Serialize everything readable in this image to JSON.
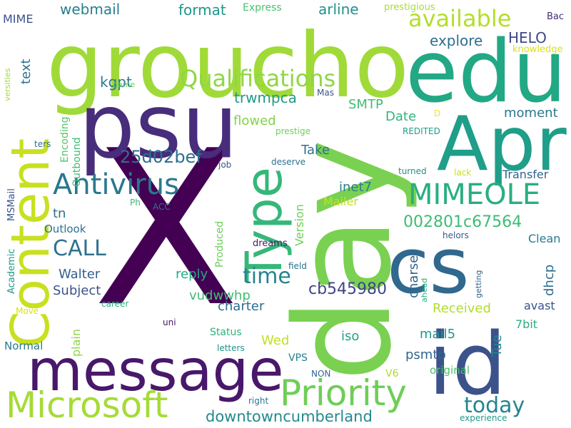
{
  "words": [
    {
      "text": "X",
      "color": "#440154"
    },
    {
      "text": "day",
      "color": "#7ad151"
    },
    {
      "text": "groucho",
      "color": "#a0da39"
    },
    {
      "text": "psu",
      "color": "#472d7b"
    },
    {
      "text": "edu",
      "color": "#22a884"
    },
    {
      "text": "id",
      "color": "#3b528b"
    },
    {
      "text": "cs",
      "color": "#31688e"
    },
    {
      "text": "Apr",
      "color": "#1f9e89"
    },
    {
      "text": "message",
      "color": "#48186a"
    },
    {
      "text": "Content",
      "color": "#c8e020"
    },
    {
      "text": "Type",
      "color": "#35b779"
    },
    {
      "text": "Priority",
      "color": "#6ece58"
    },
    {
      "text": "Microsoft",
      "color": "#a5db36"
    },
    {
      "text": "MIMEOLE",
      "color": "#29af7f"
    },
    {
      "text": "Antivirus",
      "color": "#2a788e"
    },
    {
      "text": "Qualifications",
      "color": "#8fd744"
    },
    {
      "text": "available",
      "color": "#b5de2b"
    },
    {
      "text": "today",
      "color": "#25858e"
    },
    {
      "text": "time",
      "color": "#25848e"
    },
    {
      "text": "CALL",
      "color": "#2c728e"
    },
    {
      "text": "002801c67564",
      "color": "#3dbc74"
    },
    {
      "text": "25d02bef",
      "color": "#2d708e"
    },
    {
      "text": "downtowncumberland",
      "color": "#23898e"
    },
    {
      "text": "cb545980",
      "color": "#414487"
    },
    {
      "text": "webmail",
      "color": "#277f8e"
    },
    {
      "text": "format",
      "color": "#1f968b"
    },
    {
      "text": "arline",
      "color": "#21918c"
    },
    {
      "text": "explore",
      "color": "#2e6e8e"
    },
    {
      "text": "HELO",
      "color": "#3f4788"
    },
    {
      "text": "kgpt",
      "color": "#297a8e"
    },
    {
      "text": "trwmpca",
      "color": "#1f9a8a"
    },
    {
      "text": "SMTP",
      "color": "#3fbc73"
    },
    {
      "text": "flowed",
      "color": "#84d44b"
    },
    {
      "text": "Date",
      "color": "#31b57b"
    },
    {
      "text": "moment",
      "color": "#2a788e"
    },
    {
      "text": "Take",
      "color": "#2c728e"
    },
    {
      "text": "inet7",
      "color": "#277f8e"
    },
    {
      "text": "Transfer",
      "color": "#32658e"
    },
    {
      "text": "Walter",
      "color": "#355f8d"
    },
    {
      "text": "Subject",
      "color": "#3b528b"
    },
    {
      "text": "reply",
      "color": "#23a983"
    },
    {
      "text": "vudwwhp",
      "color": "#40bd72"
    },
    {
      "text": "charter",
      "color": "#2e6d8e"
    },
    {
      "text": "Received",
      "color": "#b0dd2f"
    },
    {
      "text": "charset",
      "color": "#33638d"
    },
    {
      "text": "dhcp",
      "color": "#2f6c8e"
    },
    {
      "text": "avast",
      "color": "#3b528b"
    },
    {
      "text": "7bit",
      "color": "#28ae80"
    },
    {
      "text": "mail5",
      "color": "#1f988b"
    },
    {
      "text": "psmtp",
      "color": "#32658e"
    },
    {
      "text": "Tue",
      "color": "#25848e"
    },
    {
      "text": "iso",
      "color": "#20a386"
    },
    {
      "text": "Wed",
      "color": "#c2df23"
    },
    {
      "text": "MIME",
      "color": "#3b528b"
    },
    {
      "text": "text",
      "color": "#2d708e"
    },
    {
      "text": "Express",
      "color": "#4ac16d"
    },
    {
      "text": "prestigious",
      "color": "#a8db34"
    },
    {
      "text": "Bac",
      "color": "#472c7a"
    },
    {
      "text": "knowledge",
      "color": "#d8e219"
    },
    {
      "text": "tn",
      "color": "#2c728e"
    },
    {
      "text": "Outbound",
      "color": "#3dbc74"
    },
    {
      "text": "Encoding",
      "color": "#52c569"
    },
    {
      "text": "Version",
      "color": "#70cf57"
    },
    {
      "text": "Mailer",
      "color": "#c5e021"
    },
    {
      "text": "Produced",
      "color": "#6ccd5a"
    },
    {
      "text": "Outlook",
      "color": "#2d708e"
    },
    {
      "text": "Clean",
      "color": "#2a788e"
    },
    {
      "text": "plain",
      "color": "#8bd646"
    },
    {
      "text": "Status",
      "color": "#2db27d"
    },
    {
      "text": "Normal",
      "color": "#2a788e"
    },
    {
      "text": "original",
      "color": "#4ac16d"
    },
    {
      "text": "VPS",
      "color": "#277f8e"
    },
    {
      "text": "V6",
      "color": "#addc30"
    },
    {
      "text": "MSMail",
      "color": "#3b528b"
    },
    {
      "text": "Academic",
      "color": "#1f988b"
    },
    {
      "text": "name",
      "color": "#6ccd5a"
    },
    {
      "text": "versities",
      "color": "#a2da37"
    },
    {
      "text": "Mas",
      "color": "#39558c"
    },
    {
      "text": "prestige",
      "color": "#6ece58"
    },
    {
      "text": "REDITED",
      "color": "#1f9e89"
    },
    {
      "text": "D",
      "color": "#efe51c"
    },
    {
      "text": "ters",
      "color": "#2e6e8e"
    },
    {
      "text": "job",
      "color": "#39568c"
    },
    {
      "text": "deserve",
      "color": "#2d708e"
    },
    {
      "text": "turned",
      "color": "#20928c"
    },
    {
      "text": "lack",
      "color": "#c8e020"
    },
    {
      "text": "Ph",
      "color": "#37b878"
    },
    {
      "text": "ACC",
      "color": "#2c728e"
    },
    {
      "text": "helors",
      "color": "#38588c"
    },
    {
      "text": "field",
      "color": "#2c728e"
    },
    {
      "text": "dreams",
      "color": "#481769"
    },
    {
      "text": "getting",
      "color": "#32648e"
    },
    {
      "text": "ahead",
      "color": "#26ad81"
    },
    {
      "text": "career",
      "color": "#2db27d"
    },
    {
      "text": "Move",
      "color": "#d8e219"
    },
    {
      "text": "uni",
      "color": "#471063"
    },
    {
      "text": "letters",
      "color": "#21918c"
    },
    {
      "text": "right",
      "color": "#2a788e"
    },
    {
      "text": "NON",
      "color": "#32658e"
    },
    {
      "text": "experience",
      "color": "#1f998a"
    }
  ]
}
